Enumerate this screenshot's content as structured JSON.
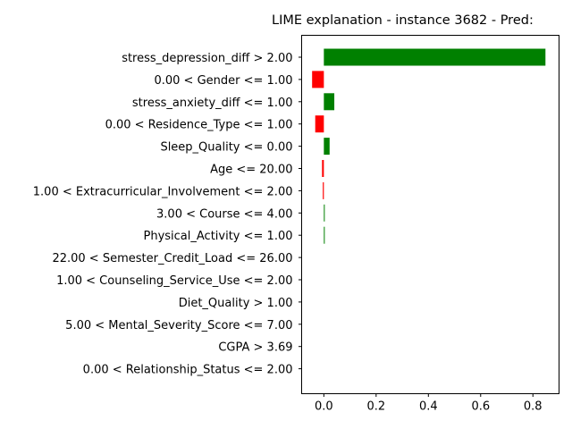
{
  "chart_data": {
    "type": "bar",
    "orientation": "horizontal",
    "title": "LIME explanation - instance 3682 - Pred:",
    "xlabel": "",
    "ylabel": "",
    "xlim": [
      -0.085,
      0.9
    ],
    "xticks": [
      0.0,
      0.2,
      0.4,
      0.6,
      0.8
    ],
    "xtick_labels": [
      "0.0",
      "0.2",
      "0.4",
      "0.6",
      "0.8"
    ],
    "grid": false,
    "colors": {
      "positive": "#008000",
      "negative": "#ff0000"
    },
    "categories": [
      "stress_depression_diff > 2.00",
      "0.00 < Gender <= 1.00",
      "stress_anxiety_diff <= 1.00",
      "0.00 < Residence_Type <= 1.00",
      "Sleep_Quality <= 0.00",
      "Age <= 20.00",
      "1.00 < Extracurricular_Involvement <= 2.00",
      "3.00 < Course <= 4.00",
      "Physical_Activity <= 1.00",
      "22.00 < Semester_Credit_Load <= 26.00",
      "1.00 < Counseling_Service_Use <= 2.00",
      "Diet_Quality > 1.00",
      "5.00 < Mental_Severity_Score <= 7.00",
      "CGPA > 3.69",
      "0.00 < Relationship_Status <= 2.00"
    ],
    "values": [
      0.848,
      -0.045,
      0.04,
      -0.033,
      0.022,
      -0.007,
      -0.004,
      0.003,
      0.002,
      0,
      0,
      0,
      0,
      0,
      0
    ]
  }
}
